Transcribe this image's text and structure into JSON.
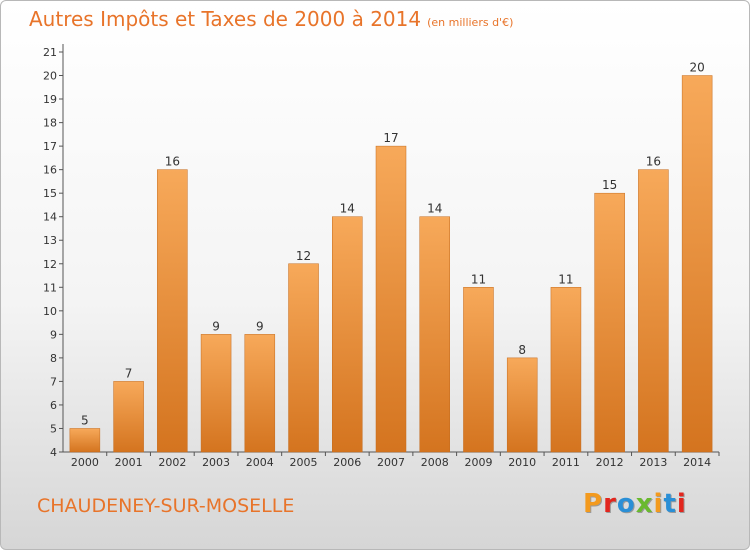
{
  "title": "Autres Impôts et Taxes de 2000 à 2014",
  "subtitle": "(en milliers d'€)",
  "commune": "CHAUDENEY-SUR-MOSELLE",
  "logo": {
    "letters": [
      "P",
      "r",
      "o",
      "x",
      "i",
      "t",
      "i"
    ],
    "colors": [
      "#f39a1e",
      "#e2261e",
      "#2a8fd6",
      "#6ab92f",
      "#f39a1e",
      "#2a8fd6",
      "#e2261e"
    ]
  },
  "colors": {
    "bar_light": "#f7a95a",
    "bar_dark": "#d4741f",
    "axis": "#555555",
    "text": "#333333",
    "accent": "#e8742a"
  },
  "chart_data": {
    "type": "bar",
    "categories": [
      "2000",
      "2001",
      "2002",
      "2003",
      "2004",
      "2005",
      "2006",
      "2007",
      "2008",
      "2009",
      "2010",
      "2011",
      "2012",
      "2013",
      "2014"
    ],
    "values": [
      5,
      7,
      16,
      9,
      9,
      12,
      14,
      17,
      14,
      11,
      8,
      11,
      15,
      16,
      20
    ],
    "ylim": [
      4,
      21
    ],
    "yticks": [
      4,
      5,
      6,
      7,
      8,
      9,
      10,
      11,
      12,
      13,
      14,
      15,
      16,
      17,
      18,
      19,
      20,
      21
    ],
    "grid": false,
    "data_labels": true
  }
}
